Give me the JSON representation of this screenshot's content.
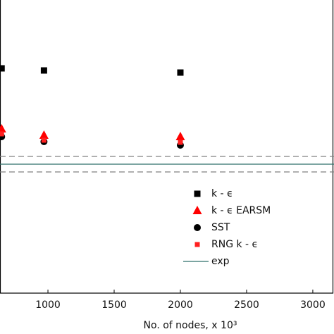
{
  "chart_data": {
    "type": "scatter",
    "x_label": "No. of nodes, x 10³",
    "xlim": [
      638,
      3160
    ],
    "ylim": [
      0,
      4.16
    ],
    "xticks": [
      1000,
      1500,
      2000,
      2500,
      3000
    ],
    "series": [
      {
        "name": "k - ϵ",
        "marker": "square",
        "color": "#000000",
        "x": [
          650,
          970,
          2000
        ],
        "values": [
          3.19,
          3.16,
          3.13
        ]
      },
      {
        "name": "k - ϵ EARSM",
        "marker": "triangle",
        "color": "#ff0000",
        "x": [
          650,
          970,
          2000
        ],
        "values": [
          2.33,
          2.24,
          2.22
        ]
      },
      {
        "name": "SST",
        "marker": "circle",
        "color": "#000000",
        "x": [
          650,
          970,
          2000
        ],
        "values": [
          2.22,
          2.15,
          2.1
        ]
      },
      {
        "name": "RNG k - ϵ",
        "marker": "small-square",
        "color": "#ff2020",
        "x": [
          650,
          970,
          2000
        ],
        "values": [
          2.26,
          2.17,
          2.14
        ]
      }
    ],
    "reference": {
      "name": "exp",
      "color": "#2f6f6a",
      "value": 1.83,
      "band": [
        1.72,
        1.94
      ],
      "band_color": "#808080"
    },
    "legend": "lower right"
  }
}
